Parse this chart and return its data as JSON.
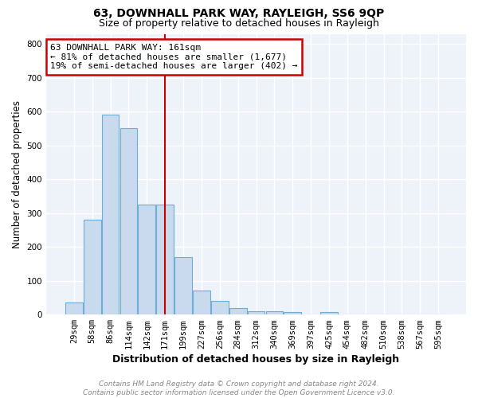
{
  "title": "63, DOWNHALL PARK WAY, RAYLEIGH, SS6 9QP",
  "subtitle": "Size of property relative to detached houses in Rayleigh",
  "xlabel": "Distribution of detached houses by size in Rayleigh",
  "ylabel": "Number of detached properties",
  "bar_labels": [
    "29sqm",
    "58sqm",
    "86sqm",
    "114sqm",
    "142sqm",
    "171sqm",
    "199sqm",
    "227sqm",
    "256sqm",
    "284sqm",
    "312sqm",
    "340sqm",
    "369sqm",
    "397sqm",
    "425sqm",
    "454sqm",
    "482sqm",
    "510sqm",
    "538sqm",
    "567sqm",
    "595sqm"
  ],
  "bar_values": [
    35,
    280,
    590,
    550,
    325,
    325,
    170,
    70,
    40,
    20,
    10,
    10,
    8,
    0,
    8,
    0,
    0,
    0,
    0,
    0,
    0
  ],
  "bar_color": "#c9d9ee",
  "bar_edge_color": "#6baed6",
  "red_line_x": 5.0,
  "red_line_color": "#cc0000",
  "annotation_text": "63 DOWNHALL PARK WAY: 161sqm\n← 81% of detached houses are smaller (1,677)\n19% of semi-detached houses are larger (402) →",
  "annotation_box_color": "white",
  "annotation_box_edge": "#cc0000",
  "ylim": [
    0,
    830
  ],
  "yticks": [
    0,
    100,
    200,
    300,
    400,
    500,
    600,
    700,
    800
  ],
  "footer_line1": "Contains HM Land Registry data © Crown copyright and database right 2024.",
  "footer_line2": "Contains public sector information licensed under the Open Government Licence v3.0.",
  "background_color": "#eef2f9",
  "grid_color": "#ffffff",
  "title_fontsize": 10,
  "subtitle_fontsize": 9,
  "tick_fontsize": 7.5,
  "ylabel_fontsize": 8.5,
  "xlabel_fontsize": 9,
  "annotation_fontsize": 8,
  "footer_fontsize": 6.5
}
